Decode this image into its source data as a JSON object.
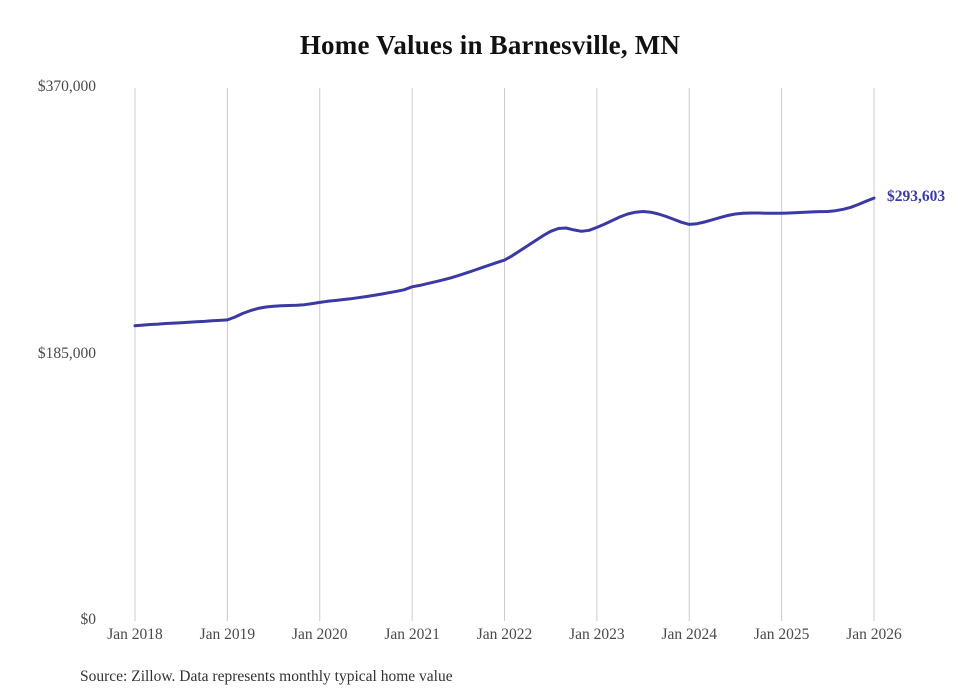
{
  "title": "Home Values in Barnesville, MN",
  "source_note": "Source: Zillow. Data represents monthly typical home value",
  "chart_data": {
    "type": "line",
    "title": "Home Values in Barnesville, MN",
    "series_name": "Monthly typical home value",
    "line_color": "#3b3aa5",
    "grid_color": "#cccccc",
    "ylim": [
      0,
      370000
    ],
    "legend": "none",
    "grid": "vertical-only",
    "end_label": "$293,603",
    "end_value": 293603,
    "y_ticks": [
      {
        "label": "$370,000",
        "value": 370000
      },
      {
        "label": "$185,000",
        "value": 185000
      },
      {
        "label": "$0",
        "value": 0
      }
    ],
    "x_tick_labels": [
      "Jan 2018",
      "Jan 2019",
      "Jan 2020",
      "Jan 2021",
      "Jan 2022",
      "Jan 2023",
      "Jan 2024",
      "Jan 2025",
      "Jan 2026"
    ],
    "x_start": "Jan 2018",
    "x_end": "Jan 2026",
    "points_per_year": 12,
    "values": [
      205000,
      205400,
      205800,
      206100,
      206500,
      206800,
      207100,
      207400,
      207700,
      208000,
      208400,
      208700,
      209000,
      211000,
      213500,
      215500,
      217000,
      218000,
      218500,
      218800,
      219000,
      219200,
      219600,
      220300,
      221200,
      221900,
      222500,
      223100,
      223700,
      224400,
      225200,
      226000,
      226900,
      227900,
      228900,
      230000,
      232000,
      233000,
      234200,
      235500,
      236800,
      238200,
      239800,
      241500,
      243300,
      245200,
      247000,
      248800,
      250500,
      253500,
      257000,
      260500,
      264000,
      267500,
      270500,
      272500,
      272800,
      271500,
      270500,
      271200,
      273200,
      275500,
      278000,
      280500,
      282500,
      283800,
      284300,
      283800,
      282500,
      280800,
      278800,
      276800,
      275300,
      275800,
      277000,
      278500,
      280000,
      281500,
      282500,
      283000,
      283200,
      283200,
      283100,
      283000,
      283000,
      283200,
      283500,
      283800,
      284000,
      284200,
      284300,
      284800,
      285800,
      287200,
      289200,
      291500,
      293603
    ]
  }
}
